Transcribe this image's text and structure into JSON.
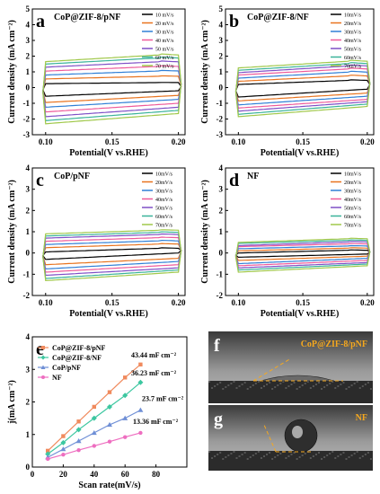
{
  "chart_data": [
    {
      "type": "line",
      "panel_letter": "a",
      "title": "CoP@ZIF-8/pNF",
      "xlabel": "Potential(V vs.RHE)",
      "ylabel": "Current density (mA cm⁻²)",
      "xlim": [
        0.09,
        0.205
      ],
      "ylim": [
        -3,
        5
      ],
      "xticks": [
        0.1,
        0.15,
        0.2
      ],
      "yticks": [
        -3,
        -2,
        -1,
        0,
        1,
        2,
        3,
        4,
        5
      ],
      "legend_position": "top-right",
      "series": [
        {
          "name": "10 mV/s",
          "color": "#000000",
          "upper": [
            0.25,
            0.33
          ],
          "lower": [
            -0.55,
            -0.2
          ]
        },
        {
          "name": "20 mV/s",
          "color": "#e8731e",
          "upper": [
            0.55,
            0.75
          ],
          "lower": [
            -0.95,
            -0.5
          ]
        },
        {
          "name": "30 mV/s",
          "color": "#2f7fd6",
          "upper": [
            0.8,
            1.1
          ],
          "lower": [
            -1.25,
            -0.75
          ]
        },
        {
          "name": "40 mV/s",
          "color": "#ee5a9a",
          "upper": [
            1.05,
            1.4
          ],
          "lower": [
            -1.55,
            -1.0
          ]
        },
        {
          "name": "50 mV/s",
          "color": "#7f4fc6",
          "upper": [
            1.3,
            1.7
          ],
          "lower": [
            -1.85,
            -1.25
          ]
        },
        {
          "name": "60 mV/s",
          "color": "#3ab39a",
          "upper": [
            1.5,
            1.95
          ],
          "lower": [
            -2.1,
            -1.45
          ]
        },
        {
          "name": "70 mV/s",
          "color": "#a0c84a",
          "upper": [
            1.65,
            2.15
          ],
          "lower": [
            -2.3,
            -1.65
          ]
        }
      ]
    },
    {
      "type": "line",
      "panel_letter": "b",
      "title": "CoP@ZIF-8/NF",
      "xlabel": "Potential(V vs.RHE)",
      "ylabel": "Current density (mA cm⁻²)",
      "xlim": [
        0.09,
        0.205
      ],
      "ylim": [
        -3,
        5
      ],
      "xticks": [
        0.1,
        0.15,
        0.2
      ],
      "yticks": [
        -3,
        -2,
        -1,
        0,
        1,
        2,
        3,
        4,
        5
      ],
      "legend_position": "top-right",
      "series": [
        {
          "name": "10mV/s",
          "color": "#000000",
          "upper": [
            0.2,
            0.5
          ],
          "lower": [
            -0.6,
            -0.1
          ]
        },
        {
          "name": "20mV/s",
          "color": "#e8731e",
          "upper": [
            0.4,
            0.8
          ],
          "lower": [
            -0.85,
            -0.35
          ]
        },
        {
          "name": "30mV/s",
          "color": "#2f7fd6",
          "upper": [
            0.6,
            1.05
          ],
          "lower": [
            -1.1,
            -0.55
          ]
        },
        {
          "name": "40mV/s",
          "color": "#ee5a9a",
          "upper": [
            0.8,
            1.25
          ],
          "lower": [
            -1.3,
            -0.75
          ]
        },
        {
          "name": "50mV/s",
          "color": "#7f4fc6",
          "upper": [
            0.95,
            1.45
          ],
          "lower": [
            -1.5,
            -0.9
          ]
        },
        {
          "name": "60mV/s",
          "color": "#3ab39a",
          "upper": [
            1.1,
            1.6
          ],
          "lower": [
            -1.7,
            -1.05
          ]
        },
        {
          "name": "70mV/s",
          "color": "#a0c84a",
          "upper": [
            1.25,
            1.75
          ],
          "lower": [
            -1.85,
            -1.2
          ]
        }
      ]
    },
    {
      "type": "line",
      "panel_letter": "c",
      "title": "CoP/pNF",
      "xlabel": "Potential(V vs.RHE)",
      "ylabel": "Current density (mA cm⁻²)",
      "xlim": [
        0.09,
        0.205
      ],
      "ylim": [
        -2,
        4
      ],
      "xticks": [
        0.1,
        0.15,
        0.2
      ],
      "yticks": [
        -2,
        -1,
        0,
        1,
        2,
        3,
        4
      ],
      "legend_position": "top-right",
      "series": [
        {
          "name": "10mV/s",
          "color": "#000000",
          "upper": [
            0.05,
            0.25
          ],
          "lower": [
            -0.3,
            0.0
          ]
        },
        {
          "name": "20mV/s",
          "color": "#e8731e",
          "upper": [
            0.25,
            0.45
          ],
          "lower": [
            -0.55,
            -0.25
          ]
        },
        {
          "name": "30mV/s",
          "color": "#2f7fd6",
          "upper": [
            0.4,
            0.6
          ],
          "lower": [
            -0.75,
            -0.4
          ]
        },
        {
          "name": "40mV/s",
          "color": "#ee5a9a",
          "upper": [
            0.55,
            0.75
          ],
          "lower": [
            -0.9,
            -0.55
          ]
        },
        {
          "name": "50mV/s",
          "color": "#7f4fc6",
          "upper": [
            0.7,
            0.9
          ],
          "lower": [
            -1.05,
            -0.7
          ]
        },
        {
          "name": "60mV/s",
          "color": "#3ab39a",
          "upper": [
            0.8,
            1.0
          ],
          "lower": [
            -1.2,
            -0.8
          ]
        },
        {
          "name": "70mV/s",
          "color": "#a0c84a",
          "upper": [
            0.9,
            1.1
          ],
          "lower": [
            -1.3,
            -0.9
          ]
        }
      ]
    },
    {
      "type": "line",
      "panel_letter": "d",
      "title": "NF",
      "xlabel": "Potential(V vs.RHE)",
      "ylabel": "Current density (mA cm⁻²)",
      "xlim": [
        0.09,
        0.205
      ],
      "ylim": [
        -2,
        4
      ],
      "xticks": [
        0.1,
        0.15,
        0.2
      ],
      "yticks": [
        -2,
        -1,
        0,
        1,
        2,
        3,
        4
      ],
      "legend_position": "top-right",
      "series": [
        {
          "name": "10mV/s",
          "color": "#000000",
          "upper": [
            0.0,
            0.15
          ],
          "lower": [
            -0.2,
            -0.05
          ]
        },
        {
          "name": "20mV/s",
          "color": "#e8731e",
          "upper": [
            0.1,
            0.25
          ],
          "lower": [
            -0.35,
            -0.15
          ]
        },
        {
          "name": "30mV/s",
          "color": "#2f7fd6",
          "upper": [
            0.2,
            0.35
          ],
          "lower": [
            -0.5,
            -0.25
          ]
        },
        {
          "name": "40mV/s",
          "color": "#ee5a9a",
          "upper": [
            0.3,
            0.45
          ],
          "lower": [
            -0.6,
            -0.35
          ]
        },
        {
          "name": "50mV/s",
          "color": "#7f4fc6",
          "upper": [
            0.35,
            0.55
          ],
          "lower": [
            -0.7,
            -0.45
          ]
        },
        {
          "name": "60mV/s",
          "color": "#3ab39a",
          "upper": [
            0.45,
            0.62
          ],
          "lower": [
            -0.8,
            -0.52
          ]
        },
        {
          "name": "70mV/s",
          "color": "#a0c84a",
          "upper": [
            0.5,
            0.7
          ],
          "lower": [
            -0.9,
            -0.6
          ]
        }
      ]
    },
    {
      "type": "line",
      "panel_letter": "e",
      "xlabel": "Scan rate(mV/s)",
      "ylabel": "j(mA cm⁻²)",
      "xlim": [
        0,
        100
      ],
      "ylim": [
        0,
        4
      ],
      "xticks": [
        0,
        20,
        40,
        60,
        80
      ],
      "yticks": [
        0,
        1,
        2,
        3,
        4
      ],
      "legend_position": "top-left",
      "series": [
        {
          "name": "CoP@ZIF-8/pNF",
          "color": "#f08a5d",
          "marker": "square",
          "x": [
            10,
            20,
            30,
            40,
            50,
            60,
            70
          ],
          "y": [
            0.5,
            0.95,
            1.4,
            1.85,
            2.3,
            2.75,
            3.15
          ],
          "annotation": "43.44 mF cm⁻²"
        },
        {
          "name": "CoP@ZIF-8/NF",
          "color": "#3cc7a0",
          "marker": "diamond",
          "x": [
            10,
            20,
            30,
            40,
            50,
            60,
            70
          ],
          "y": [
            0.4,
            0.75,
            1.15,
            1.5,
            1.85,
            2.2,
            2.6
          ],
          "annotation": "36.23 mF cm⁻²"
        },
        {
          "name": "CoP/pNF",
          "color": "#6f8fd6",
          "marker": "triangle",
          "x": [
            10,
            20,
            30,
            40,
            50,
            60,
            70
          ],
          "y": [
            0.3,
            0.55,
            0.8,
            1.05,
            1.3,
            1.5,
            1.75
          ],
          "annotation": "23.7 mF cm⁻²"
        },
        {
          "name": "NF",
          "color": "#ee6ec0",
          "marker": "circle",
          "x": [
            10,
            20,
            30,
            40,
            50,
            60,
            70
          ],
          "y": [
            0.25,
            0.38,
            0.52,
            0.65,
            0.78,
            0.92,
            1.05
          ],
          "annotation": "13.36 mF cm⁻²"
        }
      ]
    }
  ],
  "photos": [
    {
      "panel_letter": "f",
      "label": "CoP@ZIF-8/pNF",
      "label_color": "#f5a81e"
    },
    {
      "panel_letter": "g",
      "label": "NF",
      "label_color": "#f5a81e"
    }
  ]
}
